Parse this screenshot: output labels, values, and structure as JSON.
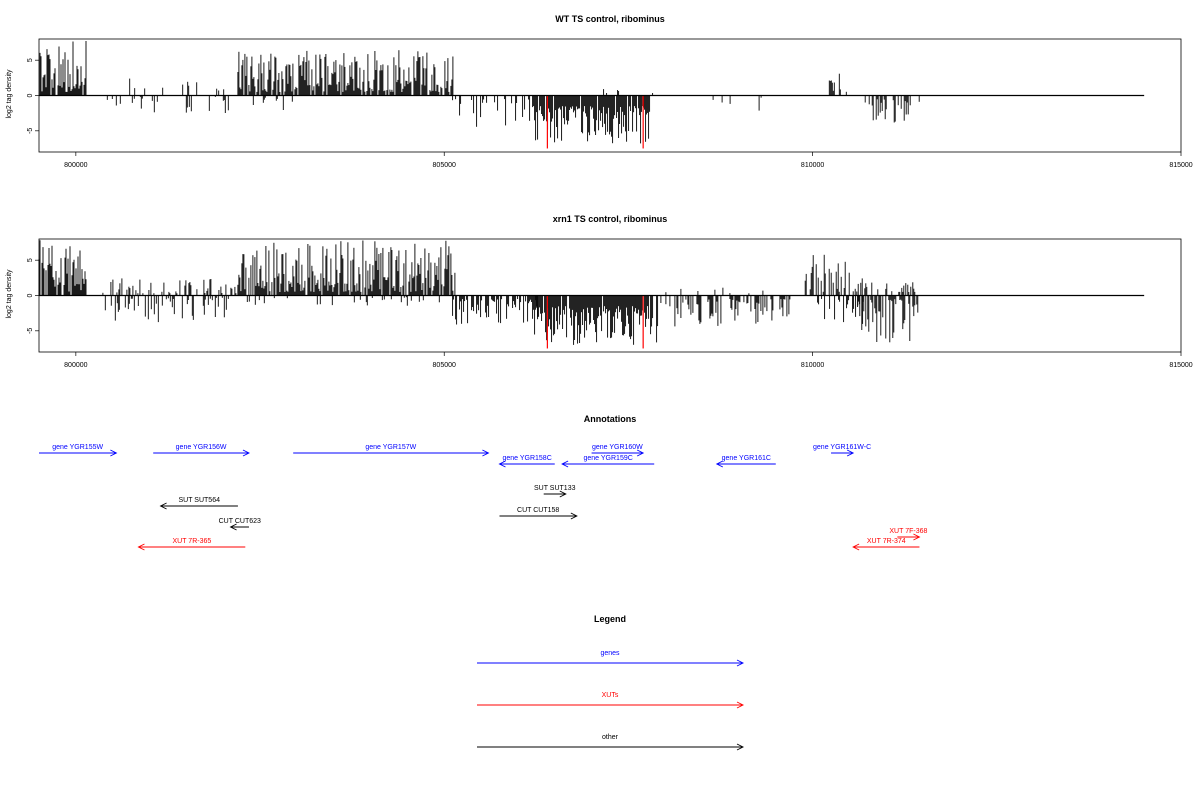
{
  "chart_data": [
    {
      "type": "bar",
      "title": "WT TS control, ribominus",
      "ylabel": "log2 tag density",
      "xlabel": "",
      "xlim": [
        799500,
        815000
      ],
      "ylim": [
        -8,
        8
      ],
      "xticks": [
        800000,
        805000,
        810000,
        815000
      ],
      "yticks": [
        -5,
        0,
        5
      ],
      "data_extent": [
        799500,
        814500
      ],
      "red_bars": [
        {
          "x": 806400,
          "y": -7.5
        },
        {
          "x": 807700,
          "y": -7.5
        }
      ],
      "segments": [
        {
          "start": 799500,
          "end": 800150,
          "min": 0.5,
          "max": 7.8,
          "density": 0.8,
          "sign": 1
        },
        {
          "start": 800400,
          "end": 803150,
          "min": 0.2,
          "max": 2.5,
          "density": 0.12,
          "sign": -1
        },
        {
          "start": 800500,
          "end": 802100,
          "min": 0.3,
          "max": 2.8,
          "density": 0.06,
          "sign": 1
        },
        {
          "start": 802200,
          "end": 805150,
          "min": 0.5,
          "max": 6.5,
          "density": 0.85,
          "sign": 1
        },
        {
          "start": 805100,
          "end": 806200,
          "min": 0.5,
          "max": 4.5,
          "density": 0.25,
          "sign": -1
        },
        {
          "start": 806200,
          "end": 807800,
          "min": 1.5,
          "max": 6.8,
          "density": 0.9,
          "sign": -1
        },
        {
          "start": 807000,
          "end": 808000,
          "min": 0.3,
          "max": 1.2,
          "density": 0.06,
          "sign": 1
        },
        {
          "start": 808500,
          "end": 809500,
          "min": 0.3,
          "max": 2.5,
          "density": 0.1,
          "sign": -1
        },
        {
          "start": 810200,
          "end": 810500,
          "min": 0.5,
          "max": 3.5,
          "density": 0.35,
          "sign": 1
        },
        {
          "start": 810700,
          "end": 811450,
          "min": 0.5,
          "max": 4.5,
          "density": 0.35,
          "sign": -1
        }
      ]
    },
    {
      "type": "bar",
      "title": "xrn1 TS control, ribominus",
      "ylabel": "log2 tag density",
      "xlabel": "",
      "xlim": [
        799500,
        815000
      ],
      "ylim": [
        -8,
        8
      ],
      "xticks": [
        800000,
        805000,
        810000,
        815000
      ],
      "yticks": [
        -5,
        0,
        5
      ],
      "data_extent": [
        799500,
        814500
      ],
      "red_bars": [
        {
          "x": 806400,
          "y": -7.5
        },
        {
          "x": 807700,
          "y": -7.5
        }
      ],
      "segments": [
        {
          "start": 799500,
          "end": 800150,
          "min": 0.5,
          "max": 8.0,
          "density": 0.8,
          "sign": 1
        },
        {
          "start": 800300,
          "end": 802200,
          "min": 0.3,
          "max": 2.5,
          "density": 0.35,
          "sign": 1
        },
        {
          "start": 800400,
          "end": 802200,
          "min": 0.3,
          "max": 3.8,
          "density": 0.35,
          "sign": -1
        },
        {
          "start": 802200,
          "end": 805150,
          "min": 0.5,
          "max": 7.8,
          "density": 0.9,
          "sign": 1
        },
        {
          "start": 802300,
          "end": 805100,
          "min": 0.2,
          "max": 1.5,
          "density": 0.12,
          "sign": -1
        },
        {
          "start": 805100,
          "end": 806300,
          "min": 0.5,
          "max": 4.2,
          "density": 0.5,
          "sign": -1
        },
        {
          "start": 806200,
          "end": 807900,
          "min": 1.5,
          "max": 7.0,
          "density": 0.92,
          "sign": -1
        },
        {
          "start": 807900,
          "end": 809700,
          "min": 0.5,
          "max": 4.5,
          "density": 0.5,
          "sign": -1
        },
        {
          "start": 807900,
          "end": 809500,
          "min": 0.3,
          "max": 1.5,
          "density": 0.06,
          "sign": 1
        },
        {
          "start": 809900,
          "end": 810700,
          "min": 0.5,
          "max": 6.0,
          "density": 0.5,
          "sign": 1
        },
        {
          "start": 810000,
          "end": 810700,
          "min": 0.5,
          "max": 4.2,
          "density": 0.3,
          "sign": -1
        },
        {
          "start": 810600,
          "end": 811450,
          "min": 0.5,
          "max": 7.0,
          "density": 0.6,
          "sign": -1
        },
        {
          "start": 810600,
          "end": 811450,
          "min": 0.5,
          "max": 2.0,
          "density": 0.25,
          "sign": 1
        }
      ]
    }
  ],
  "annotations": {
    "title": "Annotations",
    "xlim": [
      799500,
      815000
    ],
    "features": [
      {
        "label": "gene YGR155W",
        "start": 799500,
        "end": 800550,
        "strand": "+",
        "row": 0,
        "category": "genes"
      },
      {
        "label": "gene YGR156W",
        "start": 801050,
        "end": 802350,
        "strand": "+",
        "row": 0,
        "category": "genes"
      },
      {
        "label": "gene YGR157W",
        "start": 802950,
        "end": 805600,
        "strand": "+",
        "row": 0,
        "category": "genes"
      },
      {
        "label": "gene YGR160W",
        "start": 807000,
        "end": 807700,
        "strand": "+",
        "row": 0,
        "category": "genes"
      },
      {
        "label": "gene YGR161W-C",
        "start": 810250,
        "end": 810550,
        "strand": "+",
        "row": 0,
        "category": "genes"
      },
      {
        "label": "gene YGR158C",
        "start": 805750,
        "end": 806500,
        "strand": "-",
        "row": 1,
        "category": "genes"
      },
      {
        "label": "gene YGR159C",
        "start": 806600,
        "end": 807850,
        "strand": "-",
        "row": 1,
        "category": "genes"
      },
      {
        "label": "gene YGR161C",
        "start": 808700,
        "end": 809500,
        "strand": "-",
        "row": 1,
        "category": "genes"
      },
      {
        "label": "SUT SUT133",
        "start": 806350,
        "end": 806650,
        "strand": "+",
        "row": 2,
        "category": "other"
      },
      {
        "label": "SUT SUT564",
        "start": 801150,
        "end": 802200,
        "strand": "-",
        "row": 3,
        "category": "other"
      },
      {
        "label": "CUT CUT158",
        "start": 805750,
        "end": 806800,
        "strand": "+",
        "row": 4,
        "category": "other"
      },
      {
        "label": "CUT CUT623",
        "start": 802100,
        "end": 802350,
        "strand": "-",
        "row": 5,
        "category": "other"
      },
      {
        "label": "XUT 7F-368",
        "start": 811150,
        "end": 811450,
        "strand": "+",
        "row": 6,
        "category": "XUTs"
      },
      {
        "label": "XUT 7R-365",
        "start": 800850,
        "end": 802300,
        "strand": "-",
        "row": 7,
        "category": "XUTs"
      },
      {
        "label": "XUT 7R-374",
        "start": 810550,
        "end": 811450,
        "strand": "-",
        "row": 7,
        "category": "XUTs"
      }
    ]
  },
  "legend": {
    "title": "Legend",
    "items": [
      {
        "label": "genes",
        "color": "#0000ff"
      },
      {
        "label": "XUTs",
        "color": "#ff0000"
      },
      {
        "label": "other",
        "color": "#000000"
      }
    ]
  },
  "colors": {
    "genes": "#0000ff",
    "XUTs": "#ff0000",
    "other": "#000000",
    "highlight": "#ff0000"
  }
}
